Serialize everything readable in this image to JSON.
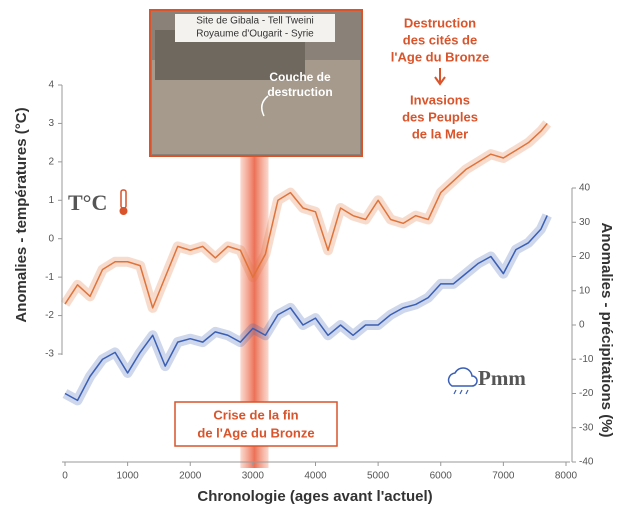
{
  "chart_data": {
    "type": "line",
    "xlabel": "Chronologie (ages avant l'actuel)",
    "ylabel": "Anomalies - températures (°C)",
    "y2label": "Anomalies - précipitations (%)",
    "xlim": [
      0,
      8000
    ],
    "xticks": [
      0,
      1000,
      2000,
      3000,
      4000,
      5000,
      6000,
      7000,
      8000
    ],
    "ylim": [
      -3,
      4
    ],
    "yticks": [
      -3,
      -2,
      -1,
      0,
      1,
      2,
      3,
      4
    ],
    "y2lim": [
      -40,
      40
    ],
    "y2ticks": [
      -40,
      -30,
      -20,
      -10,
      0,
      10,
      20,
      30,
      40
    ],
    "highlight_range": [
      2800,
      3250
    ],
    "x": [
      0,
      200,
      400,
      600,
      800,
      1000,
      1200,
      1400,
      1600,
      1800,
      2000,
      2200,
      2400,
      2600,
      2800,
      3000,
      3200,
      3400,
      3600,
      3800,
      4000,
      4200,
      4400,
      4600,
      4800,
      5000,
      5200,
      5400,
      5600,
      5800,
      6000,
      6200,
      6400,
      6600,
      6800,
      7000,
      7200,
      7400,
      7600,
      7700
    ],
    "series": [
      {
        "name": "T°C",
        "color": "#e0733a",
        "values": [
          -1.7,
          -1.2,
          -1.5,
          -0.8,
          -0.6,
          -0.6,
          -0.7,
          -1.8,
          -1.0,
          -0.2,
          -0.3,
          -0.2,
          -0.5,
          -0.2,
          -0.3,
          -1.0,
          -0.4,
          1.0,
          1.2,
          0.8,
          0.7,
          -0.3,
          0.8,
          0.6,
          0.5,
          1.0,
          0.5,
          0.4,
          0.6,
          0.5,
          1.2,
          1.5,
          1.8,
          2.0,
          2.2,
          2.1,
          2.3,
          2.5,
          2.8,
          3.0
        ]
      },
      {
        "name": "Pmm",
        "color": "#3a5fb5",
        "axis": "y2",
        "values": [
          -20,
          -22,
          -15,
          -10,
          -8,
          -14,
          -8,
          -3,
          -12,
          -5,
          -4,
          -5,
          -2,
          -3,
          -5,
          -1,
          -3,
          3,
          5,
          0,
          2,
          -3,
          0,
          -3,
          0,
          0,
          3,
          5,
          6,
          8,
          12,
          12,
          15,
          18,
          20,
          15,
          22,
          24,
          28,
          32
        ]
      }
    ],
    "photo_caption": [
      "Site de Gibala - Tell Tweini",
      "Royaume d'Ougarit - Syrie"
    ],
    "photo_label": [
      "Couche de",
      "destruction"
    ],
    "annotation_top": [
      "Destruction",
      "des cités de",
      "l'Age du Bronze"
    ],
    "annotation_mid": [
      "Invasions",
      "des Peuples",
      "de la Mer"
    ],
    "annotation_bottom": [
      "Crise de la fin",
      "de l'Age du Bronze"
    ]
  }
}
